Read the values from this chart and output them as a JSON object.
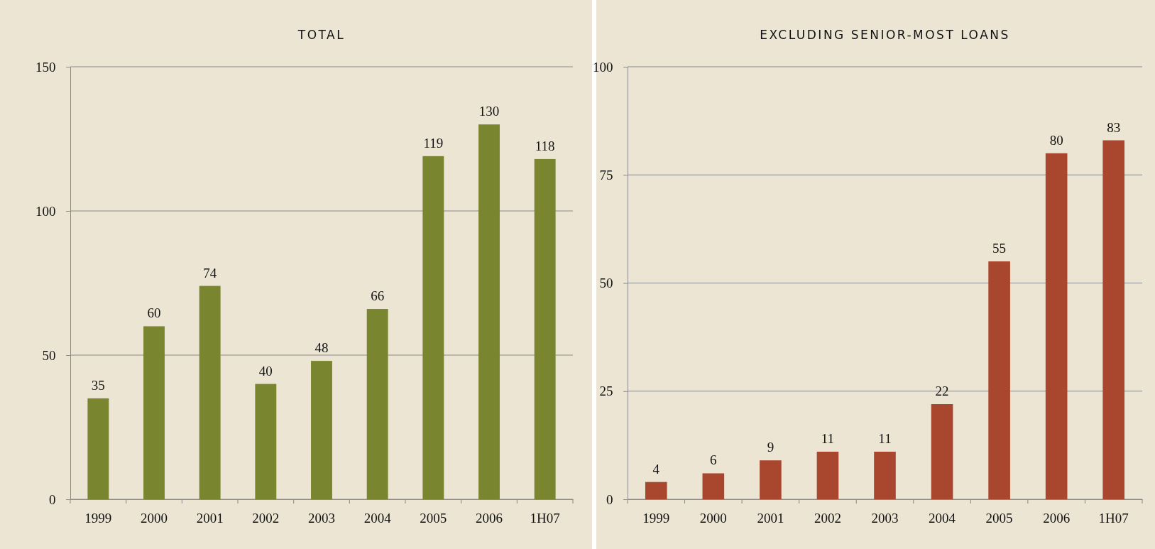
{
  "chart_data": [
    {
      "type": "bar",
      "title": "TOTAL",
      "categories": [
        "1999",
        "2000",
        "2001",
        "2002",
        "2003",
        "2004",
        "2005",
        "2006",
        "1H07"
      ],
      "values": [
        35,
        60,
        74,
        40,
        48,
        66,
        119,
        130,
        118
      ],
      "color": "#7a8530",
      "ylim": [
        0,
        150
      ],
      "yticks": [
        0,
        50,
        100,
        150
      ],
      "grid": "y",
      "data_labels": true
    },
    {
      "type": "bar",
      "title": "EXCLUDING SENIOR-MOST LOANS",
      "categories": [
        "1999",
        "2000",
        "2001",
        "2002",
        "2003",
        "2004",
        "2005",
        "2006",
        "1H07"
      ],
      "values": [
        4,
        6,
        9,
        11,
        11,
        22,
        55,
        80,
        83
      ],
      "color": "#a8472e",
      "ylim": [
        0,
        100
      ],
      "yticks": [
        0,
        25,
        50,
        75,
        100
      ],
      "grid": "y",
      "data_labels": true
    }
  ]
}
